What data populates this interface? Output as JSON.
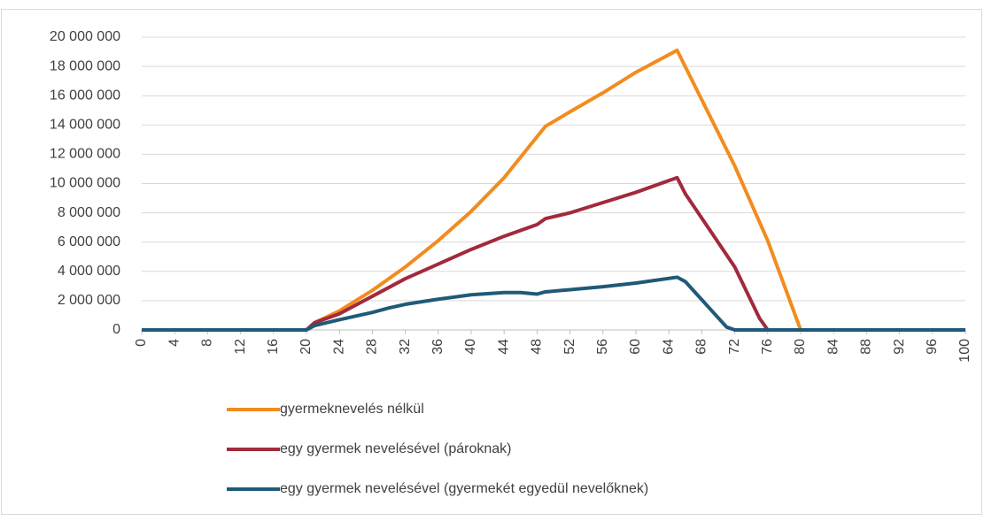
{
  "chart_data": {
    "type": "line",
    "xlim": [
      0,
      100
    ],
    "xticks": [
      0,
      4,
      8,
      12,
      16,
      20,
      24,
      28,
      32,
      36,
      40,
      44,
      48,
      52,
      56,
      60,
      64,
      68,
      72,
      76,
      80,
      84,
      88,
      92,
      96,
      100
    ],
    "ylim": [
      0,
      20000000
    ],
    "yticks": [
      {
        "value": 0,
        "label": "0"
      },
      {
        "value": 2000000,
        "label": "2 000 000"
      },
      {
        "value": 4000000,
        "label": "4 000 000"
      },
      {
        "value": 6000000,
        "label": "6 000 000"
      },
      {
        "value": 8000000,
        "label": "8 000 000"
      },
      {
        "value": 10000000,
        "label": "10 000 000"
      },
      {
        "value": 12000000,
        "label": "12 000 000"
      },
      {
        "value": 14000000,
        "label": "14 000 000"
      },
      {
        "value": 16000000,
        "label": "16 000 000"
      },
      {
        "value": 18000000,
        "label": "18 000 000"
      },
      {
        "value": 20000000,
        "label": "20 000 000"
      }
    ],
    "grid": true,
    "legend": "bottom",
    "series": [
      {
        "name": "gyermeknevelés nélkül",
        "color": "#f28c1e",
        "x": [
          0,
          20,
          21,
          24,
          28,
          32,
          36,
          40,
          44,
          48,
          49,
          52,
          56,
          60,
          65,
          72,
          76,
          80,
          100
        ],
        "values": [
          0,
          0,
          500000,
          1300000,
          2700000,
          4300000,
          6100000,
          8100000,
          10400000,
          13200000,
          13900000,
          14900000,
          16200000,
          17600000,
          19100000,
          11200000,
          6100000,
          0,
          0
        ]
      },
      {
        "name": "egy gyermek nevelésével (pároknak)",
        "color": "#a12a3c",
        "x": [
          0,
          20,
          21,
          24,
          28,
          32,
          36,
          40,
          44,
          48,
          49,
          52,
          56,
          60,
          65,
          66,
          72,
          75,
          76,
          100
        ],
        "values": [
          0,
          0,
          500000,
          1100000,
          2300000,
          3500000,
          4500000,
          5500000,
          6400000,
          7200000,
          7600000,
          8000000,
          8700000,
          9400000,
          10400000,
          9300000,
          4300000,
          800000,
          0,
          0
        ]
      },
      {
        "name": "egy gyermek nevelésével (gyermekét egyedül nevelőknek)",
        "color": "#1f5a78",
        "x": [
          0,
          20,
          21,
          24,
          28,
          30,
          32,
          36,
          40,
          44,
          46,
          48,
          49,
          52,
          56,
          60,
          65,
          66,
          71,
          72,
          100
        ],
        "values": [
          0,
          0,
          300000,
          700000,
          1200000,
          1500000,
          1750000,
          2100000,
          2400000,
          2550000,
          2550000,
          2450000,
          2600000,
          2750000,
          2950000,
          3200000,
          3600000,
          3300000,
          200000,
          0,
          0
        ]
      }
    ]
  }
}
